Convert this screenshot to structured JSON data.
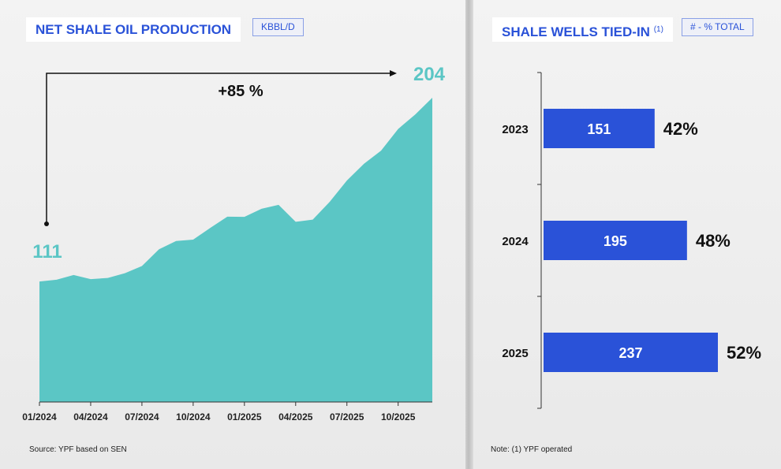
{
  "left": {
    "title": "NET SHALE OIL PRODUCTION",
    "unit": "KBBL/D",
    "source": "Source: YPF based on SEN"
  },
  "right": {
    "title": "SHALE WELLS TIED-IN",
    "title_sup": "(1)",
    "unit": "# - % TOTAL",
    "note": "Note: (1) YPF operated"
  },
  "chart_data": [
    {
      "type": "area",
      "title": "NET SHALE OIL PRODUCTION",
      "ylabel": "KBBL/D",
      "color": "#5bc6c5",
      "x": [
        "01/2024",
        "02/2024",
        "03/2024",
        "04/2024",
        "05/2024",
        "06/2024",
        "07/2024",
        "08/2024",
        "09/2024",
        "10/2024",
        "11/2024",
        "12/2024",
        "01/2025",
        "02/2025",
        "03/2025",
        "04/2025",
        "05/2025",
        "06/2025",
        "07/2025",
        "08/2025",
        "09/2025",
        "10/2025",
        "11/2025",
        "12/2025"
      ],
      "tick_labels": [
        "01/2024",
        "04/2024",
        "07/2024",
        "10/2024",
        "01/2025",
        "04/2025",
        "07/2025",
        "10/2025"
      ],
      "values": [
        111,
        111.9,
        114.3,
        112.2,
        112.8,
        115.2,
        118.8,
        127.3,
        131.5,
        132.2,
        138.1,
        143.8,
        143.7,
        147.8,
        149.8,
        141.2,
        142.3,
        151.4,
        162.1,
        170.6,
        177.2,
        188.2,
        195.5,
        204
      ],
      "ylim": [
        50,
        215
      ],
      "start_label": "111",
      "end_label": "204",
      "growth_label": "+85 %"
    },
    {
      "type": "bar",
      "orientation": "horizontal",
      "title": "SHALE WELLS TIED-IN",
      "color": "#2a52d8",
      "categories": [
        "2023",
        "2024",
        "2025"
      ],
      "values": [
        151,
        195,
        237
      ],
      "percent_labels": [
        "42%",
        "48%",
        "52%"
      ],
      "xlim": [
        0,
        237
      ]
    }
  ]
}
